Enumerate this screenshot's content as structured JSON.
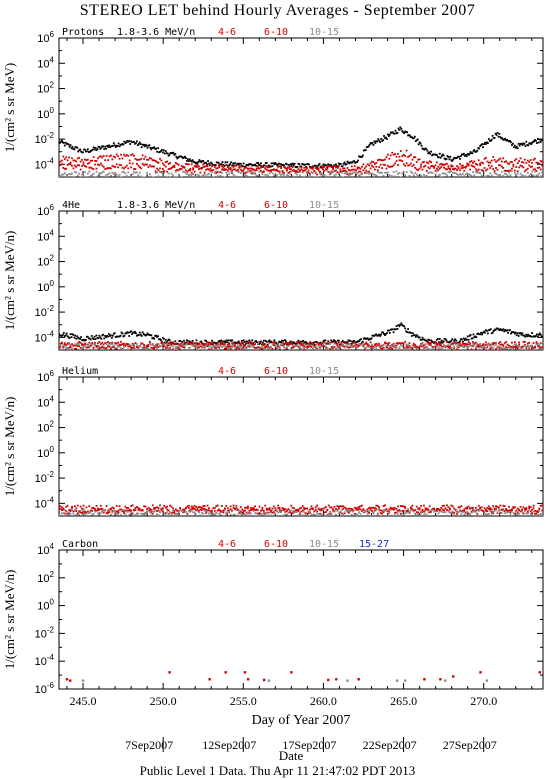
{
  "title": "STEREO LET behind Hourly Averages - September 2007",
  "footer": "Public Level 1 Data. Thu Apr 11 21:47:02 PDT 2013",
  "colors": {
    "black": "#000000",
    "red": "#d40000",
    "gray": "#8c8c8c",
    "blue": "#1a2bd6"
  },
  "chart_data": [
    {
      "type": "scatter",
      "panel_label": "Protons",
      "ylabel": "1/(cm² s sr MeV)",
      "ylim_log10": [
        -5,
        6
      ],
      "ytick_exponents": [
        6,
        4,
        2,
        0,
        -2,
        -4
      ],
      "xlim": [
        243.5,
        273.7
      ],
      "series": [
        {
          "name": "1.8-3.6 MeV/n",
          "color": "black",
          "profile": [
            [
              243.5,
              -2.2
            ],
            [
              245,
              -3.0
            ],
            [
              246.5,
              -2.6
            ],
            [
              248,
              -2.2
            ],
            [
              250,
              -3.0
            ],
            [
              252,
              -3.8
            ],
            [
              254,
              -4.0
            ],
            [
              258,
              -4.1
            ],
            [
              261,
              -4.1
            ],
            [
              262,
              -3.8
            ],
            [
              263,
              -2.4
            ],
            [
              264,
              -1.8
            ],
            [
              264.8,
              -1.2
            ],
            [
              265.6,
              -1.8
            ],
            [
              266.5,
              -3.0
            ],
            [
              268,
              -3.6
            ],
            [
              269.5,
              -3.0
            ],
            [
              270.8,
              -1.6
            ],
            [
              272,
              -2.6
            ],
            [
              273.7,
              -2.0
            ]
          ]
        },
        {
          "name": "4-6",
          "color": "red",
          "profile": [
            [
              243.5,
              -3.6
            ],
            [
              245,
              -3.7
            ],
            [
              247,
              -3.4
            ],
            [
              249,
              -3.5
            ],
            [
              251,
              -4.2
            ],
            [
              258,
              -4.4
            ],
            [
              262,
              -4.3
            ],
            [
              263,
              -3.9
            ],
            [
              264.5,
              -3.2
            ],
            [
              265.2,
              -3.1
            ],
            [
              266,
              -3.8
            ],
            [
              268,
              -4.2
            ],
            [
              270.5,
              -3.6
            ],
            [
              271.5,
              -3.8
            ],
            [
              273.7,
              -3.7
            ]
          ]
        },
        {
          "name": "6-10",
          "color": "red",
          "profile": [
            [
              243.5,
              -4.2
            ],
            [
              248,
              -4.1
            ],
            [
              250,
              -4.4
            ],
            [
              262,
              -4.6
            ],
            [
              264.8,
              -3.9
            ],
            [
              266,
              -4.3
            ],
            [
              273.7,
              -4.3
            ]
          ]
        },
        {
          "name": "10-15",
          "color": "gray",
          "profile": [
            [
              243.5,
              -4.8
            ],
            [
              273.7,
              -4.8
            ]
          ]
        }
      ]
    },
    {
      "type": "scatter",
      "panel_label": "4He",
      "ylabel": "1/(cm² s sr MeV/n)",
      "ylim_log10": [
        -5,
        6
      ],
      "ytick_exponents": [
        6,
        4,
        2,
        0,
        -2,
        -4
      ],
      "xlim": [
        243.5,
        273.7
      ],
      "series": [
        {
          "name": "1.8-3.6 MeV/n",
          "color": "black",
          "profile": [
            [
              243.5,
              -3.7
            ],
            [
              245,
              -4.1
            ],
            [
              248,
              -3.7
            ],
            [
              249,
              -3.8
            ],
            [
              250.5,
              -4.4
            ],
            [
              262,
              -4.4
            ],
            [
              263,
              -4.0
            ],
            [
              264.3,
              -3.5
            ],
            [
              264.8,
              -3.0
            ],
            [
              265.5,
              -3.7
            ],
            [
              266.5,
              -4.3
            ],
            [
              268.5,
              -4.3
            ],
            [
              270,
              -3.6
            ],
            [
              271,
              -3.4
            ],
            [
              272.5,
              -3.8
            ],
            [
              273.7,
              -3.8
            ]
          ]
        },
        {
          "name": "4-6",
          "color": "red",
          "profile": [
            [
              243.5,
              -4.6
            ],
            [
              273.7,
              -4.6
            ]
          ]
        },
        {
          "name": "6-10",
          "color": "red",
          "profile": [
            [
              243.5,
              -4.7
            ],
            [
              273.7,
              -4.7
            ]
          ]
        },
        {
          "name": "10-15",
          "color": "gray",
          "profile": [
            [
              243.5,
              -4.75
            ],
            [
              273.7,
              -4.75
            ]
          ]
        }
      ]
    },
    {
      "type": "scatter",
      "panel_label": "Helium",
      "ylabel": "1/(cm² s sr MeV/n)",
      "ylim_log10": [
        -5,
        6
      ],
      "ytick_exponents": [
        6,
        4,
        2,
        0,
        -2,
        -4
      ],
      "xlim": [
        243.5,
        273.7
      ],
      "series": [
        {
          "name": "4-6",
          "color": "red",
          "profile": [
            [
              243.5,
              -4.4
            ],
            [
              273.7,
              -4.4
            ]
          ]
        },
        {
          "name": "6-10",
          "color": "red",
          "profile": [
            [
              243.5,
              -4.6
            ],
            [
              273.7,
              -4.6
            ]
          ]
        },
        {
          "name": "10-15",
          "color": "gray",
          "profile": [
            [
              243.5,
              -4.75
            ],
            [
              273.7,
              -4.75
            ]
          ]
        }
      ]
    },
    {
      "type": "scatter",
      "panel_label": "Carbon",
      "ylabel": "1/(cm² s sr MeV/n)",
      "ylim_log10": [
        -6,
        4
      ],
      "ytick_exponents": [
        4,
        2,
        0,
        -2,
        -4,
        -6
      ],
      "xlim": [
        243.5,
        273.7
      ],
      "series": [
        {
          "name": "4-6",
          "color": "red",
          "points": [
            [
              244,
              -5.3
            ],
            [
              250.4,
              -4.8
            ],
            [
              253.9,
              -4.8
            ],
            [
              255.1,
              -4.8
            ],
            [
              258,
              -4.8
            ],
            [
              262.2,
              -5.3
            ],
            [
              266.3,
              -5.3
            ],
            [
              267.3,
              -5.3
            ],
            [
              268.1,
              -5.1
            ],
            [
              269.8,
              -4.8
            ],
            [
              273.5,
              -4.8
            ]
          ]
        },
        {
          "name": "6-10",
          "color": "red",
          "points": [
            [
              244.2,
              -5.4
            ],
            [
              252.9,
              -5.3
            ],
            [
              255.3,
              -5.3
            ],
            [
              256.3,
              -5.35
            ],
            [
              260.3,
              -5.35
            ],
            [
              260.8,
              -5.3
            ]
          ]
        },
        {
          "name": "10-15",
          "color": "gray",
          "points": [
            [
              245,
              -5.4
            ],
            [
              256.6,
              -5.4
            ],
            [
              261.5,
              -5.4
            ],
            [
              264.6,
              -5.4
            ],
            [
              265.1,
              -5.4
            ],
            [
              267.6,
              -5.4
            ],
            [
              270.2,
              -5.4
            ]
          ]
        },
        {
          "name": "15-27",
          "color": "blue",
          "points": []
        }
      ]
    }
  ],
  "xaxis": {
    "label": "Day of Year 2007",
    "tick_labels": [
      "245.0",
      "250.0",
      "255.0",
      "260.0",
      "265.0",
      "270.0"
    ],
    "tick_values": [
      245,
      250,
      255,
      260,
      265,
      270
    ]
  },
  "dates": [
    {
      "label": "7Sep2007",
      "day": 250
    },
    {
      "label": "12Sep2007",
      "day": 255
    },
    {
      "label": "17Sep2007",
      "day": 260
    },
    {
      "label": "22Sep2007",
      "day": 265
    },
    {
      "label": "27Sep2007",
      "day": 270
    }
  ],
  "date_axis_label": "Date"
}
